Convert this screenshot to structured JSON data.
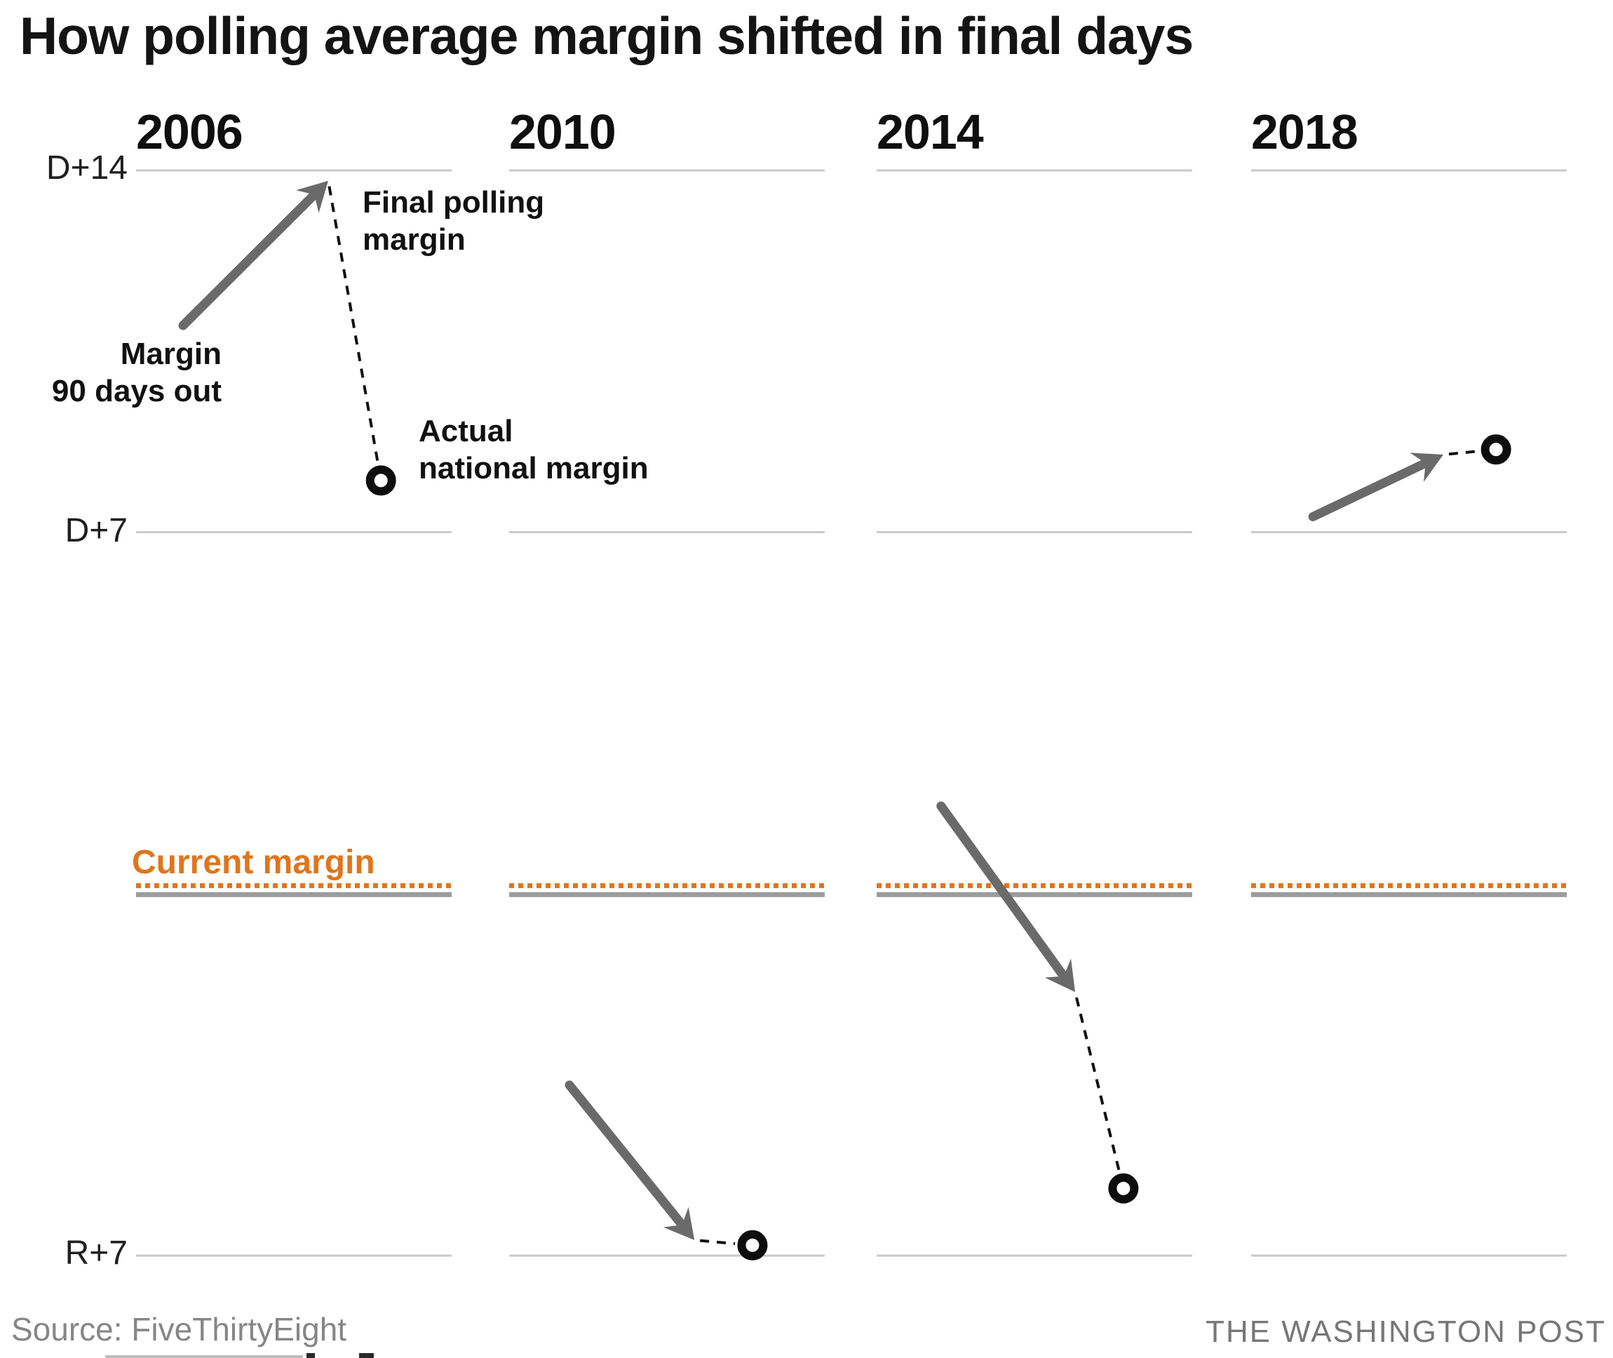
{
  "title": "How polling average margin shifted in final days",
  "axis": {
    "top_label": "D+14",
    "mid_label": "D+7",
    "bottom_label": "R+7"
  },
  "annotations": {
    "final_polling": "Final polling\nmargin",
    "margin_90": "Margin\n90 days out",
    "actual_national": "Actual\nnational margin",
    "current_margin_label": "Current margin"
  },
  "footer": {
    "source": "Source: FiveThirtyEight",
    "credit": "THE WASHINGTON POST"
  },
  "colors": {
    "accent_orange": "#e0751c",
    "arrow_gray": "#6a6a6a",
    "gridline_gray": "#c9c9c9",
    "zero_line_gray": "#9c9c9c",
    "connector_black": "#111111",
    "marker_black": "#0d0d0d"
  },
  "chart_data": {
    "type": "arrow",
    "description": "Small-multiple arrow chart. Each panel: arrow from polling margin 90 days out to final polling margin; open circle = actual national margin. Positive values = D advantage, negative = R advantage.",
    "ylim": [
      -7,
      14
    ],
    "gridlines": [
      14,
      7,
      -7
    ],
    "zero_line": 0,
    "current_margin": 0.2,
    "panels": [
      {
        "year": "2006",
        "margin_90_days_out": 11.0,
        "final_polling_margin": 13.8,
        "actual_national_margin": 8.0
      },
      {
        "year": "2010",
        "margin_90_days_out": -3.7,
        "final_polling_margin": -6.7,
        "actual_national_margin": -6.8
      },
      {
        "year": "2014",
        "margin_90_days_out": 1.7,
        "final_polling_margin": -1.9,
        "actual_national_margin": -5.7
      },
      {
        "year": "2018",
        "margin_90_days_out": 7.3,
        "final_polling_margin": 8.5,
        "actual_national_margin": 8.6
      }
    ],
    "legend_position": "annotated-in-first-panel",
    "grid": "horizontal-only"
  }
}
